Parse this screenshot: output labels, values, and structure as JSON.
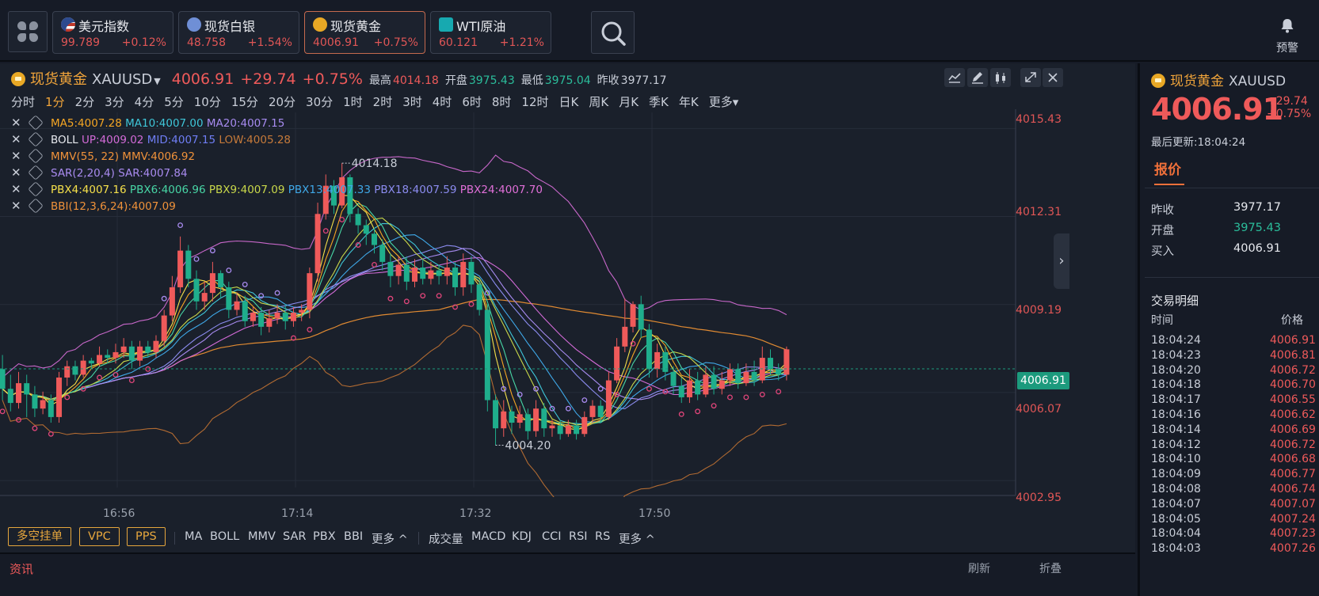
{
  "tickers": [
    {
      "name": "美元指数",
      "price": "99.789",
      "change": "+0.12%",
      "icon": "us-flag-icon"
    },
    {
      "name": "现货白银",
      "price": "48.758",
      "change": "+1.54%",
      "icon": "silver-icon"
    },
    {
      "name": "现货黄金",
      "price": "4006.91",
      "change": "+0.75%",
      "icon": "gold-icon"
    },
    {
      "name": "WTI原油",
      "price": "60.121",
      "change": "+1.21%",
      "icon": "oil-icon"
    }
  ],
  "alarm_label": "预警",
  "header": {
    "name": "现货黄金",
    "symbol": "XAUUSD",
    "price": "4006.91",
    "change": "+29.74",
    "pct": "+0.75%",
    "high_label": "最高",
    "high": "4014.18",
    "open_label": "开盘",
    "open": "3975.43",
    "low_label": "最低",
    "low": "3975.04",
    "prev_label": "昨收",
    "prev": "3977.17"
  },
  "periods": [
    "分时",
    "1分",
    "2分",
    "3分",
    "4分",
    "5分",
    "10分",
    "15分",
    "20分",
    "30分",
    "1时",
    "2时",
    "3时",
    "4时",
    "6时",
    "8时",
    "12时",
    "日K",
    "周K",
    "月K",
    "季K",
    "年K",
    "更多▾"
  ],
  "selected_period": "1分",
  "indicator_lines": {
    "ma": {
      "ma5": "MA5:4007.28",
      "ma10": "MA10:4007.00",
      "ma20": "MA20:4007.15"
    },
    "boll": {
      "name": "BOLL",
      "up": "UP:4009.02",
      "mid": "MID:4007.15",
      "low": "LOW:4005.28"
    },
    "mmv": "MMV(55, 22) MMV:4006.92",
    "sar": "SAR(2,20,4) SAR:4007.84",
    "pbx": {
      "p4": "PBX4:4007.16",
      "p6": "PBX6:4006.96",
      "p9": "PBX9:4007.09",
      "p13": "PBX13:4007.33",
      "p18": "PBX18:4007.59",
      "p24": "PBX24:4007.70"
    },
    "bbi": "BBI(12,3,6,24):4007.09"
  },
  "y_labels": [
    "4015.43",
    "4012.31",
    "4009.19",
    "4006.07",
    "4002.95"
  ],
  "current_price_tag": "4006.91",
  "x_labels": [
    "16:56",
    "17:14",
    "17:32",
    "17:50"
  ],
  "annotations": {
    "high": "4014.18",
    "low": "4004.20"
  },
  "bottom_buttons": [
    "多空挂单",
    "VPC",
    "PPS"
  ],
  "main_indicators": [
    "MA",
    "BOLL",
    "MMV",
    "SAR",
    "PBX",
    "BBI",
    "更多 ^"
  ],
  "sub_indicators": [
    "成交量",
    "MACD",
    "KDJ",
    "CCI",
    "RSI",
    "RS",
    "更多 ^"
  ],
  "news": {
    "title": "资讯",
    "refresh": "刷新",
    "collapse": "折叠"
  },
  "right_panel": {
    "name": "现货黄金",
    "symbol": "XAUUSD",
    "price": "4006.91",
    "change": "+29.74",
    "pct": "+0.75%",
    "updated": "最后更新:18:04:24",
    "tab": "报价",
    "quotes": [
      {
        "label": "昨收",
        "value": "3977.17",
        "color": "#e7e9ee"
      },
      {
        "label": "开盘",
        "value": "3975.43",
        "color": "#2bbd9b"
      },
      {
        "label": "买入",
        "value": "4006.91",
        "color": "#e7e9ee"
      }
    ],
    "trades_title": "交易明细",
    "col_time": "时间",
    "col_price": "价格",
    "trades": [
      {
        "time": "18:04:24",
        "price": "4006.91"
      },
      {
        "time": "18:04:23",
        "price": "4006.81"
      },
      {
        "time": "18:04:20",
        "price": "4006.72"
      },
      {
        "time": "18:04:18",
        "price": "4006.70"
      },
      {
        "time": "18:04:17",
        "price": "4006.55"
      },
      {
        "time": "18:04:16",
        "price": "4006.62"
      },
      {
        "time": "18:04:14",
        "price": "4006.69"
      },
      {
        "time": "18:04:12",
        "price": "4006.72"
      },
      {
        "time": "18:04:10",
        "price": "4006.68"
      },
      {
        "time": "18:04:09",
        "price": "4006.77"
      },
      {
        "time": "18:04:08",
        "price": "4006.74"
      },
      {
        "time": "18:04:07",
        "price": "4007.07"
      },
      {
        "time": "18:04:05",
        "price": "4007.24"
      },
      {
        "time": "18:04:04",
        "price": "4007.23"
      },
      {
        "time": "18:04:03",
        "price": "4007.26"
      }
    ]
  },
  "colors": {
    "up": "#ef5a5a",
    "down": "#1fae8c",
    "accent": "#f0a43a",
    "bg": "#1a202b"
  },
  "chart_data": {
    "type": "candlestick",
    "yaxis_ticks": [
      4015.43,
      4012.31,
      4009.19,
      4006.07,
      4002.95
    ],
    "ylim": [
      4002.7,
      4016.0
    ],
    "x_ticks": [
      "16:56",
      "17:14",
      "17:32",
      "17:50"
    ],
    "candles": [
      [
        4006.9,
        4006.2,
        4007.4,
        4005.8
      ],
      [
        4006.2,
        4005.7,
        4006.7,
        4005.4
      ],
      [
        4005.7,
        4006.4,
        4006.8,
        4005.5
      ],
      [
        4006.4,
        4006.0,
        4006.7,
        4005.2
      ],
      [
        4006.0,
        4005.5,
        4006.3,
        4005.2
      ],
      [
        4005.5,
        4005.8,
        4006.1,
        4005.3
      ],
      [
        4005.8,
        4005.2,
        4006.0,
        4005.0
      ],
      [
        4005.2,
        4006.6,
        4006.8,
        4005.0
      ],
      [
        4006.6,
        4007.0,
        4007.2,
        4006.3
      ],
      [
        4007.0,
        4006.7,
        4007.2,
        4006.5
      ],
      [
        4006.7,
        4007.2,
        4007.4,
        4006.6
      ],
      [
        4007.2,
        4007.1,
        4007.3,
        4006.9
      ],
      [
        4007.1,
        4007.4,
        4007.7,
        4007.0
      ],
      [
        4007.4,
        4007.3,
        4007.6,
        4007.1
      ],
      [
        4007.3,
        4007.5,
        4007.8,
        4007.1
      ],
      [
        4007.5,
        4007.7,
        4008.0,
        4007.3
      ],
      [
        4007.7,
        4007.2,
        4007.9,
        4006.9
      ],
      [
        4007.2,
        4007.7,
        4007.9,
        4007.0
      ],
      [
        4007.7,
        4007.5,
        4007.9,
        4007.3
      ],
      [
        4007.5,
        4007.9,
        4008.1,
        4007.3
      ],
      [
        4007.9,
        4008.8,
        4009.0,
        4007.7
      ],
      [
        4008.8,
        4009.8,
        4010.2,
        4008.6
      ],
      [
        4009.8,
        4011.1,
        4011.6,
        4009.6
      ],
      [
        4011.1,
        4010.1,
        4011.3,
        4009.8
      ],
      [
        4010.1,
        4009.3,
        4010.4,
        4009.0
      ],
      [
        4009.3,
        4009.6,
        4010.0,
        4009.0
      ],
      [
        4009.6,
        4010.3,
        4010.7,
        4009.3
      ],
      [
        4010.3,
        4009.8,
        4010.4,
        4009.4
      ],
      [
        4009.8,
        4009.0,
        4010.0,
        4008.7
      ],
      [
        4009.0,
        4009.3,
        4009.6,
        4008.8
      ],
      [
        4009.3,
        4008.6,
        4009.5,
        4008.4
      ],
      [
        4008.6,
        4008.9,
        4009.1,
        4008.4
      ],
      [
        4008.9,
        4008.4,
        4009.1,
        4008.1
      ],
      [
        4008.4,
        4008.7,
        4009.0,
        4008.2
      ],
      [
        4008.7,
        4008.9,
        4009.2,
        4008.5
      ],
      [
        4008.9,
        4008.6,
        4009.2,
        4008.3
      ],
      [
        4008.6,
        4008.9,
        4009.1,
        4008.4
      ],
      [
        4008.9,
        4009.0,
        4009.2,
        4008.6
      ],
      [
        4009.0,
        4010.3,
        4010.5,
        4008.7
      ],
      [
        4010.3,
        4012.4,
        4012.8,
        4010.0
      ],
      [
        4012.4,
        4013.4,
        4013.8,
        4012.2
      ],
      [
        4013.4,
        4012.7,
        4013.6,
        4012.4
      ],
      [
        4012.7,
        4013.7,
        4014.2,
        4012.6
      ],
      [
        4013.7,
        4012.4,
        4013.8,
        4012.1
      ],
      [
        4012.4,
        4012.0,
        4012.6,
        4011.7
      ],
      [
        4012.0,
        4011.7,
        4012.2,
        4011.3
      ],
      [
        4011.7,
        4011.3,
        4011.9,
        4011.0
      ],
      [
        4011.3,
        4010.7,
        4011.5,
        4010.4
      ],
      [
        4010.7,
        4010.2,
        4011.0,
        4009.8
      ],
      [
        4010.2,
        4010.6,
        4010.9,
        4009.9
      ],
      [
        4010.6,
        4010.0,
        4010.9,
        4009.7
      ],
      [
        4010.0,
        4010.5,
        4010.8,
        4009.8
      ],
      [
        4010.5,
        4010.1,
        4010.8,
        4009.9
      ],
      [
        4010.1,
        4010.4,
        4010.7,
        4009.9
      ],
      [
        4010.4,
        4010.2,
        4010.6,
        4009.9
      ],
      [
        4010.2,
        4010.5,
        4010.9,
        4009.9
      ],
      [
        4010.5,
        4009.8,
        4010.7,
        4009.5
      ],
      [
        4009.8,
        4010.7,
        4011.0,
        4009.5
      ],
      [
        4010.7,
        4009.9,
        4010.9,
        4009.6
      ],
      [
        4009.9,
        4009.0,
        4010.0,
        4008.8
      ],
      [
        4009.0,
        4005.8,
        4009.2,
        4005.4
      ],
      [
        4005.8,
        4004.8,
        4006.0,
        4004.2
      ],
      [
        4004.8,
        4005.4,
        4005.8,
        4004.5
      ],
      [
        4005.4,
        4005.0,
        4005.6,
        4004.6
      ],
      [
        4005.0,
        4005.3,
        4005.6,
        4004.8
      ],
      [
        4005.3,
        4004.7,
        4005.5,
        4004.4
      ],
      [
        4004.7,
        4005.5,
        4005.8,
        4004.5
      ],
      [
        4005.5,
        4004.8,
        4005.7,
        4004.5
      ],
      [
        4004.8,
        4004.9,
        4005.1,
        4004.5
      ],
      [
        4004.9,
        4004.6,
        4005.1,
        4004.4
      ],
      [
        4004.6,
        4004.9,
        4005.1,
        4004.5
      ],
      [
        4004.9,
        4004.6,
        4005.1,
        4004.4
      ],
      [
        4004.6,
        4005.2,
        4005.4,
        4004.5
      ],
      [
        4005.2,
        4005.6,
        4005.8,
        4005.0
      ],
      [
        4005.6,
        4005.2,
        4005.8,
        4005.0
      ],
      [
        4005.2,
        4006.5,
        4006.8,
        4005.1
      ],
      [
        4006.5,
        4007.7,
        4008.0,
        4006.4
      ],
      [
        4007.7,
        4008.4,
        4009.4,
        4007.5
      ],
      [
        4008.4,
        4009.2,
        4009.3,
        4008.2
      ],
      [
        4009.2,
        4008.3,
        4009.5,
        4008.0
      ],
      [
        4008.3,
        4006.9,
        4008.5,
        4006.6
      ],
      [
        4006.9,
        4007.5,
        4007.8,
        4006.6
      ],
      [
        4007.5,
        4006.8,
        4007.7,
        4006.5
      ],
      [
        4006.8,
        4006.3,
        4007.0,
        4006.0
      ],
      [
        4006.3,
        4005.9,
        4006.6,
        4005.7
      ],
      [
        4005.9,
        4006.5,
        4006.9,
        4005.7
      ],
      [
        4006.5,
        4006.0,
        4006.8,
        4005.8
      ],
      [
        4006.0,
        4006.7,
        4007.0,
        4005.9
      ],
      [
        4006.7,
        4006.2,
        4007.0,
        4006.0
      ],
      [
        4006.2,
        4006.5,
        4006.8,
        4006.0
      ],
      [
        4006.5,
        4006.9,
        4007.1,
        4006.3
      ],
      [
        4006.9,
        4006.4,
        4007.1,
        4006.2
      ],
      [
        4006.4,
        4006.8,
        4007.1,
        4006.3
      ],
      [
        4006.8,
        4006.5,
        4007.2,
        4006.3
      ],
      [
        4006.5,
        4007.3,
        4007.7,
        4006.4
      ],
      [
        4007.3,
        4006.9,
        4007.6,
        4006.7
      ],
      [
        4006.9,
        4006.7,
        4007.1,
        4006.5
      ],
      [
        4006.7,
        4007.6,
        4007.7,
        4006.5
      ]
    ]
  }
}
